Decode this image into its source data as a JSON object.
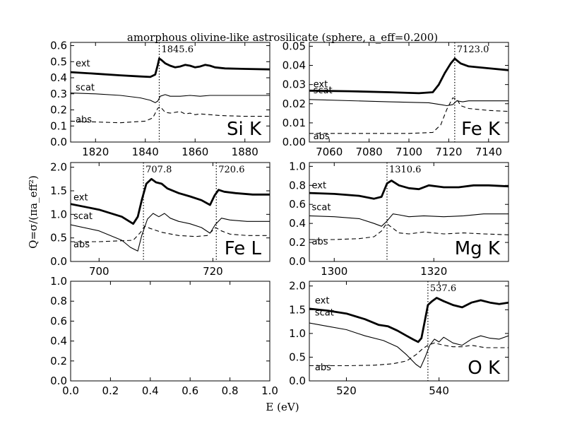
{
  "figure": {
    "title": "amorphous olivine-like astrosilicate (sphere, a_eff=0.200)",
    "xlabel": "E (eV)",
    "ylabel": "Q=σ/(πa_eff²)"
  },
  "chart_data": [
    {
      "type": "line",
      "title": "Si K",
      "xlim": [
        1810,
        1890
      ],
      "ylim": [
        0,
        0.62
      ],
      "xticks": [
        1820,
        1840,
        1860,
        1880
      ],
      "yticks": [
        0.0,
        0.1,
        0.2,
        0.3,
        0.4,
        0.5,
        0.6
      ],
      "xtick_labels": [
        "1820",
        "1840",
        "1860",
        "1880"
      ],
      "ytick_labels": [
        "0.0",
        "0.1",
        "0.2",
        "0.3",
        "0.4",
        "0.5",
        "0.6"
      ],
      "edges": [
        {
          "x": 1845.6,
          "label": "1845.6"
        }
      ],
      "series": [
        {
          "name": "ext",
          "style": "ext",
          "x": [
            1810,
            1820,
            1830,
            1838,
            1842,
            1844,
            1845,
            1845.6,
            1846.5,
            1848,
            1850,
            1852,
            1854,
            1856,
            1858,
            1860,
            1862,
            1864,
            1866,
            1868,
            1872,
            1880,
            1890
          ],
          "y": [
            0.435,
            0.425,
            0.415,
            0.408,
            0.405,
            0.42,
            0.48,
            0.52,
            0.51,
            0.49,
            0.475,
            0.465,
            0.47,
            0.48,
            0.475,
            0.465,
            0.47,
            0.48,
            0.475,
            0.465,
            0.458,
            0.455,
            0.452
          ]
        },
        {
          "name": "scat",
          "style": "scat",
          "x": [
            1810,
            1820,
            1830,
            1838,
            1842,
            1844,
            1845,
            1846,
            1848,
            1850,
            1854,
            1858,
            1862,
            1866,
            1872,
            1880,
            1890
          ],
          "y": [
            0.305,
            0.3,
            0.29,
            0.275,
            0.26,
            0.245,
            0.255,
            0.285,
            0.295,
            0.285,
            0.285,
            0.29,
            0.285,
            0.29,
            0.29,
            0.29,
            0.29
          ]
        },
        {
          "name": "abs",
          "style": "abs",
          "x": [
            1810,
            1820,
            1830,
            1840,
            1843,
            1845,
            1846,
            1848,
            1850,
            1854,
            1856,
            1858,
            1860,
            1862,
            1866,
            1870,
            1880,
            1890
          ],
          "y": [
            0.13,
            0.125,
            0.12,
            0.13,
            0.15,
            0.21,
            0.22,
            0.185,
            0.18,
            0.19,
            0.175,
            0.18,
            0.17,
            0.175,
            0.17,
            0.165,
            0.16,
            0.16
          ]
        }
      ],
      "series_labels": [
        {
          "text": "ext",
          "x": 1812,
          "y": 0.47
        },
        {
          "text": "scat",
          "x": 1812,
          "y": 0.32
        },
        {
          "text": "abs",
          "x": 1812,
          "y": 0.12
        }
      ]
    },
    {
      "type": "line",
      "title": "Fe K",
      "xlim": [
        7050,
        7150
      ],
      "ylim": [
        0,
        0.052
      ],
      "xticks": [
        7060,
        7080,
        7100,
        7120,
        7140
      ],
      "yticks": [
        0.0,
        0.01,
        0.02,
        0.03,
        0.04,
        0.05
      ],
      "xtick_labels": [
        "7060",
        "7080",
        "7100",
        "7120",
        "7140"
      ],
      "ytick_labels": [
        "0.00",
        "0.01",
        "0.02",
        "0.03",
        "0.04",
        "0.05"
      ],
      "edges": [
        {
          "x": 7123.0,
          "label": "7123.0"
        }
      ],
      "series": [
        {
          "name": "ext",
          "style": "ext",
          "x": [
            7050,
            7070,
            7090,
            7105,
            7112,
            7115,
            7118,
            7121,
            7123,
            7126,
            7130,
            7140,
            7150
          ],
          "y": [
            0.0268,
            0.0265,
            0.026,
            0.0255,
            0.026,
            0.03,
            0.036,
            0.041,
            0.0435,
            0.041,
            0.0395,
            0.0385,
            0.0375
          ]
        },
        {
          "name": "scat",
          "style": "scat",
          "x": [
            7050,
            7090,
            7110,
            7116,
            7119,
            7122,
            7124,
            7127,
            7130,
            7140,
            7150
          ],
          "y": [
            0.0222,
            0.021,
            0.0205,
            0.0195,
            0.019,
            0.0195,
            0.0215,
            0.021,
            0.0215,
            0.0215,
            0.0215
          ]
        },
        {
          "name": "abs",
          "style": "abs",
          "x": [
            7050,
            7100,
            7112,
            7116,
            7119,
            7122,
            7124,
            7126,
            7130,
            7140,
            7150
          ],
          "y": [
            0.0045,
            0.0045,
            0.005,
            0.009,
            0.017,
            0.023,
            0.0225,
            0.019,
            0.0175,
            0.0165,
            0.016
          ]
        }
      ],
      "series_labels": [
        {
          "text": "ext",
          "x": 7052,
          "y": 0.0285
        },
        {
          "text": "scat",
          "x": 7052,
          "y": 0.0255
        },
        {
          "text": "abs",
          "x": 7052,
          "y": 0.0015
        }
      ]
    },
    {
      "type": "line",
      "title": "Fe L",
      "xlim": [
        695,
        730
      ],
      "ylim": [
        0,
        2.1
      ],
      "xticks": [
        700,
        720
      ],
      "yticks": [
        0.0,
        0.5,
        1.0,
        1.5,
        2.0
      ],
      "xtick_labels": [
        "700",
        "720"
      ],
      "ytick_labels": [
        "0.0",
        "0.5",
        "1.0",
        "1.5",
        "2.0"
      ],
      "edges": [
        {
          "x": 707.8,
          "label": "707.8"
        },
        {
          "x": 720.6,
          "label": "720.6"
        }
      ],
      "series": [
        {
          "name": "ext",
          "style": "ext",
          "x": [
            695,
            700,
            704,
            706,
            706.8,
            707.5,
            708.3,
            709.2,
            710,
            711,
            712,
            714,
            716,
            718,
            719.5,
            720.3,
            721,
            722,
            724,
            727,
            730
          ],
          "y": [
            1.22,
            1.1,
            0.95,
            0.8,
            0.95,
            1.3,
            1.65,
            1.75,
            1.68,
            1.65,
            1.55,
            1.45,
            1.38,
            1.3,
            1.2,
            1.4,
            1.52,
            1.48,
            1.45,
            1.42,
            1.42
          ]
        },
        {
          "name": "scat",
          "style": "scat",
          "x": [
            695,
            700,
            704,
            705.5,
            706.8,
            707.5,
            708.5,
            709.5,
            710.5,
            711.5,
            712.5,
            714,
            716,
            718,
            719.5,
            720.4,
            721.5,
            723,
            726,
            730
          ],
          "y": [
            0.78,
            0.65,
            0.45,
            0.3,
            0.22,
            0.55,
            0.9,
            1.02,
            0.95,
            1.02,
            0.92,
            0.85,
            0.8,
            0.72,
            0.6,
            0.78,
            0.92,
            0.88,
            0.85,
            0.85
          ]
        },
        {
          "name": "abs",
          "style": "abs",
          "x": [
            695,
            700,
            704,
            706,
            707.3,
            708,
            709,
            711,
            714,
            717,
            719,
            720.5,
            721.5,
            723,
            726,
            730
          ],
          "y": [
            0.42,
            0.42,
            0.44,
            0.45,
            0.62,
            0.75,
            0.7,
            0.62,
            0.55,
            0.53,
            0.55,
            0.72,
            0.65,
            0.58,
            0.55,
            0.55
          ]
        }
      ],
      "series_labels": [
        {
          "text": "ext",
          "x": 695.5,
          "y": 1.3
        },
        {
          "text": "scat",
          "x": 695.5,
          "y": 0.9
        },
        {
          "text": "abs",
          "x": 695.5,
          "y": 0.3
        }
      ]
    },
    {
      "type": "line",
      "title": "Mg K",
      "xlim": [
        1295,
        1335
      ],
      "ylim": [
        0,
        1.04
      ],
      "xticks": [
        1300,
        1320
      ],
      "yticks": [
        0.0,
        0.2,
        0.4,
        0.6,
        0.8,
        1.0
      ],
      "xtick_labels": [
        "1300",
        "1320"
      ],
      "ytick_labels": [
        "0.0",
        "0.2",
        "0.4",
        "0.6",
        "0.8",
        "1.0"
      ],
      "edges": [
        {
          "x": 1310.6,
          "label": "1310.6"
        }
      ],
      "series": [
        {
          "name": "ext",
          "style": "ext",
          "x": [
            1295,
            1300,
            1305,
            1308,
            1309.5,
            1310.6,
            1311.5,
            1313,
            1315,
            1317,
            1319,
            1322,
            1325,
            1328,
            1331,
            1335
          ],
          "y": [
            0.72,
            0.71,
            0.69,
            0.66,
            0.68,
            0.82,
            0.85,
            0.8,
            0.77,
            0.76,
            0.8,
            0.78,
            0.78,
            0.8,
            0.8,
            0.79
          ]
        },
        {
          "name": "scat",
          "style": "scat",
          "x": [
            1295,
            1300,
            1305,
            1308,
            1309.5,
            1310.5,
            1311.8,
            1313,
            1315,
            1318,
            1322,
            1326,
            1330,
            1335
          ],
          "y": [
            0.48,
            0.47,
            0.45,
            0.4,
            0.37,
            0.42,
            0.5,
            0.49,
            0.47,
            0.48,
            0.47,
            0.48,
            0.5,
            0.5
          ]
        },
        {
          "name": "abs",
          "style": "abs",
          "x": [
            1295,
            1300,
            1305,
            1308,
            1309.5,
            1310.5,
            1311.5,
            1313,
            1315,
            1318,
            1322,
            1326,
            1330,
            1335
          ],
          "y": [
            0.23,
            0.23,
            0.24,
            0.26,
            0.32,
            0.4,
            0.36,
            0.3,
            0.29,
            0.31,
            0.29,
            0.3,
            0.29,
            0.28
          ]
        }
      ],
      "series_labels": [
        {
          "text": "ext",
          "x": 1295.5,
          "y": 0.77
        },
        {
          "text": "scat",
          "x": 1295.5,
          "y": 0.54
        },
        {
          "text": "abs",
          "x": 1295.5,
          "y": 0.18
        }
      ]
    },
    {
      "type": "line",
      "title": "",
      "xlim": [
        0,
        1
      ],
      "ylim": [
        0,
        1
      ],
      "xticks": [
        0.0,
        0.2,
        0.4,
        0.6,
        0.8,
        1.0
      ],
      "yticks": [
        0.0,
        0.2,
        0.4,
        0.6,
        0.8,
        1.0
      ],
      "xtick_labels": [
        "0.0",
        "0.2",
        "0.4",
        "0.6",
        "0.8",
        "1.0"
      ],
      "ytick_labels": [
        "0.0",
        "0.2",
        "0.4",
        "0.6",
        "0.8",
        "1.0"
      ],
      "edges": [],
      "series": [],
      "series_labels": []
    },
    {
      "type": "line",
      "title": "O K",
      "xlim": [
        512,
        555
      ],
      "ylim": [
        0,
        2.1
      ],
      "xticks": [
        520,
        540
      ],
      "yticks": [
        0.0,
        0.5,
        1.0,
        1.5,
        2.0
      ],
      "xtick_labels": [
        "520",
        "540"
      ],
      "ytick_labels": [
        "0.0",
        "0.5",
        "1.0",
        "1.5",
        "2.0"
      ],
      "edges": [
        {
          "x": 537.6,
          "label": "537.6"
        }
      ],
      "series": [
        {
          "name": "ext",
          "style": "ext",
          "x": [
            512,
            516,
            520,
            524,
            527,
            529,
            531,
            533,
            534.5,
            535.5,
            536.2,
            537,
            537.6,
            538.5,
            539.5,
            541,
            543,
            545,
            547,
            549,
            551,
            553,
            555
          ],
          "y": [
            1.52,
            1.48,
            1.42,
            1.3,
            1.18,
            1.15,
            1.06,
            0.95,
            0.87,
            0.82,
            0.9,
            1.3,
            1.6,
            1.68,
            1.75,
            1.68,
            1.6,
            1.55,
            1.65,
            1.7,
            1.65,
            1.62,
            1.65
          ]
        },
        {
          "name": "scat",
          "style": "scat",
          "x": [
            512,
            516,
            520,
            524,
            528,
            531,
            533,
            535,
            536,
            537,
            538,
            539,
            540,
            541,
            543,
            545,
            547,
            549,
            551,
            553,
            555
          ],
          "y": [
            1.22,
            1.15,
            1.08,
            0.95,
            0.85,
            0.72,
            0.55,
            0.35,
            0.28,
            0.5,
            0.75,
            0.88,
            0.82,
            0.92,
            0.8,
            0.75,
            0.88,
            0.95,
            0.9,
            0.88,
            0.95
          ]
        },
        {
          "name": "abs",
          "style": "abs",
          "x": [
            512,
            520,
            526,
            530,
            533,
            535,
            536.5,
            537.6,
            539,
            541,
            543,
            545,
            547,
            550,
            553,
            555
          ],
          "y": [
            0.32,
            0.32,
            0.33,
            0.36,
            0.42,
            0.55,
            0.68,
            0.75,
            0.8,
            0.75,
            0.72,
            0.72,
            0.75,
            0.7,
            0.7,
            0.7
          ]
        }
      ],
      "series_labels": [
        {
          "text": "ext",
          "x": 513.2,
          "y": 1.63
        },
        {
          "text": "scat",
          "x": 513.2,
          "y": 1.38
        },
        {
          "text": "abs",
          "x": 513.2,
          "y": 0.22
        }
      ]
    }
  ]
}
